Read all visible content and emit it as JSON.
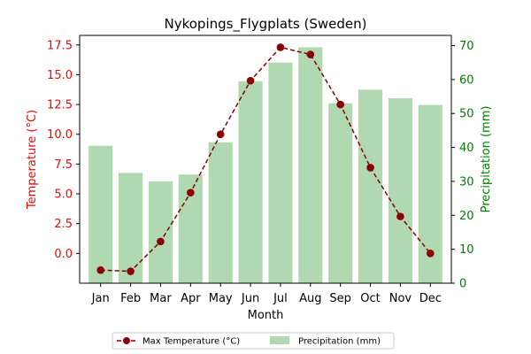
{
  "chart_data": {
    "type": "bar",
    "title": "Nykopings_Flygplats (Sweden)",
    "xlabel": "Month",
    "ylabel_left": "Temperature (°C)",
    "ylabel_right": "Precipitation (mm)",
    "categories": [
      "Jan",
      "Feb",
      "Mar",
      "Apr",
      "May",
      "Jun",
      "Jul",
      "Aug",
      "Sep",
      "Oct",
      "Nov",
      "Dec"
    ],
    "y_left_ticks": [
      "0.0",
      "2.5",
      "5.0",
      "7.5",
      "10.0",
      "12.5",
      "15.0",
      "17.5"
    ],
    "y_right_ticks": [
      "0",
      "10",
      "20",
      "30",
      "40",
      "50",
      "60",
      "70"
    ],
    "y_left_lim": [
      -2.5,
      18.3
    ],
    "y_right_lim": [
      0,
      73
    ],
    "series": [
      {
        "name": "Precipitation (mm)",
        "type": "bar",
        "axis": "right",
        "color": "#b0d9b1",
        "values": [
          40.5,
          32.5,
          30,
          32,
          41.5,
          59.5,
          65,
          69.5,
          53,
          57,
          54.5,
          52.5
        ]
      },
      {
        "name": "Max Temperature (°C)",
        "type": "line",
        "axis": "left",
        "color": "#8b0000",
        "style": "dashed",
        "marker": "circle",
        "values": [
          -1.4,
          -1.5,
          1.0,
          5.1,
          10.0,
          14.5,
          17.3,
          16.7,
          12.5,
          7.2,
          3.1,
          0.0
        ]
      }
    ],
    "legend_position": "bottom-center",
    "grid": false
  },
  "colors": {
    "left_axis": "#ff0000",
    "right_axis": "#008000",
    "text": "#000000"
  }
}
